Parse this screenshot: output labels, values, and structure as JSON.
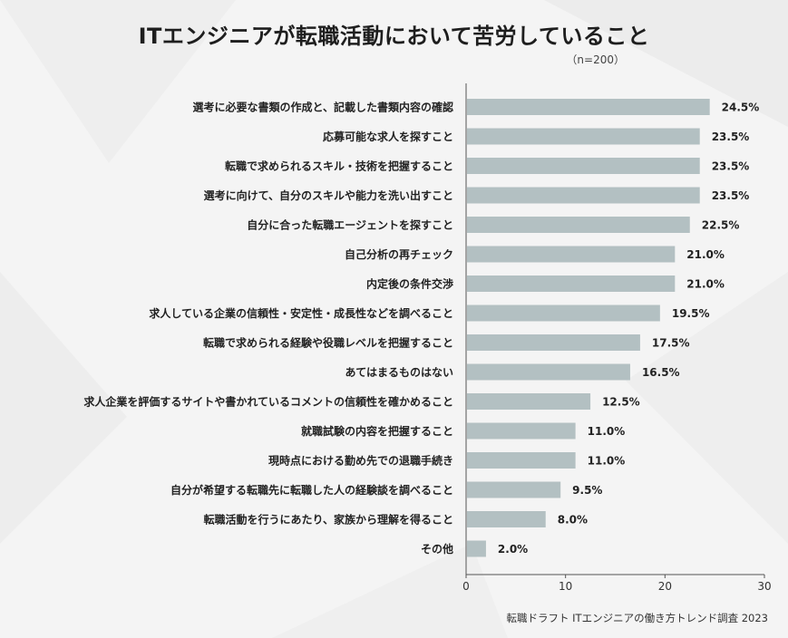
{
  "chart_data": {
    "type": "bar",
    "orientation": "horizontal",
    "title": "ITエンジニアが転職活動において苦労していること",
    "subtitle": "（n=200）",
    "categories": [
      "選考に必要な書類の作成と、記載した書類内容の確認",
      "応募可能な求人を探すこと",
      "転職で求められるスキル・技術を把握すること",
      "選考に向けて、自分のスキルや能力を洗い出すこと",
      "自分に合った転職エージェントを探すこと",
      "自己分析の再チェック",
      "内定後の条件交渉",
      "求人している企業の信頼性・安定性・成長性などを調べること",
      "転職で求められる経験や役職レベルを把握すること",
      "あてはまるものはない",
      "求人企業を評価するサイトや書かれているコメントの信頼性を確かめること",
      "就職試験の内容を把握すること",
      "現時点における勤め先での退職手続き",
      "自分が希望する転職先に転職した人の経験談を調べること",
      "転職活動を行うにあたり、家族から理解を得ること",
      "その他"
    ],
    "values": [
      24.5,
      23.5,
      23.5,
      23.5,
      22.5,
      21.0,
      21.0,
      19.5,
      17.5,
      16.5,
      12.5,
      11.0,
      11.0,
      9.5,
      8.0,
      2.0
    ],
    "value_labels": [
      "24.5%",
      "23.5%",
      "23.5%",
      "23.5%",
      "22.5%",
      "21.0%",
      "21.0%",
      "19.5%",
      "17.5%",
      "16.5%",
      "12.5%",
      "11.0%",
      "11.0%",
      "9.5%",
      "8.0%",
      "2.0%"
    ],
    "xlim": [
      0,
      30
    ],
    "xticks": [
      0,
      10,
      20,
      30
    ],
    "xlabel": "",
    "ylabel": "",
    "bar_color": "#b3c0c2"
  },
  "source": "転職ドラフト ITエンジニアの働き方トレンド調査 2023"
}
